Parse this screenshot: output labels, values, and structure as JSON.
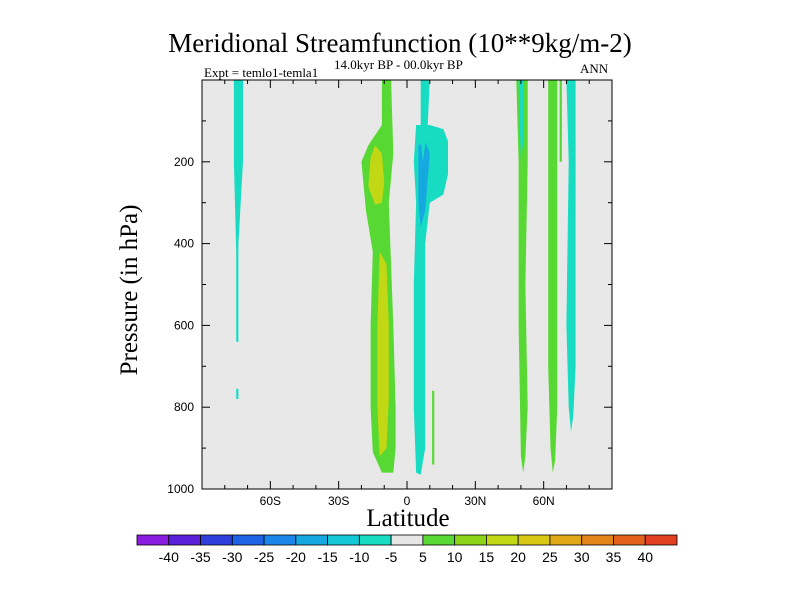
{
  "chart_data": {
    "type": "heatmap",
    "title": "Meridional Streamfunction (10**9kg/m-2)",
    "subtitle_left": "Expt = temlo1-temla1",
    "subtitle_center": "14.0kyr BP - 00.0kyr BP",
    "subtitle_right": "ANN",
    "xlabel": "Latitude",
    "ylabel": "Pressure (in hPa)",
    "xlim": [
      -90,
      90
    ],
    "ylim": [
      1000,
      0
    ],
    "x_ticks": [
      -60,
      -30,
      0,
      30,
      60
    ],
    "x_tick_labels": [
      "60S",
      "30S",
      "0",
      "30N",
      "60N"
    ],
    "y_ticks": [
      200,
      400,
      600,
      800,
      1000
    ],
    "y_tick_labels": [
      "200",
      "400",
      "600",
      "800",
      "1000"
    ],
    "background_color": "#e8e8e8",
    "colorbar": {
      "labels": [
        "-40",
        "-35",
        "-30",
        "-25",
        "-20",
        "-15",
        "-10",
        "-5",
        "5",
        "10",
        "15",
        "20",
        "25",
        "30",
        "35",
        "40"
      ],
      "colors": [
        "#8a1be0",
        "#5a22d8",
        "#2f3fdc",
        "#1e62e6",
        "#1a86e8",
        "#16a8e0",
        "#14c8d6",
        "#18dcc2",
        "#e6e6e6",
        "#58d832",
        "#8cd41a",
        "#c2d814",
        "#d8c814",
        "#e0a814",
        "#e2861a",
        "#e2621c",
        "#e04020"
      ]
    },
    "contour_regions": [
      {
        "name": "cyan-band-70s",
        "level": "-5",
        "color": "#18dcc2",
        "outline": [
          [
            -76,
            0
          ],
          [
            -72,
            0
          ],
          [
            -72,
            200
          ],
          [
            -74,
            400
          ],
          [
            -74,
            560
          ],
          [
            -74,
            640
          ],
          [
            -75,
            640
          ],
          [
            -75,
            420
          ],
          [
            -76,
            200
          ]
        ]
      },
      {
        "name": "cyan-spot-75s",
        "level": "-5",
        "color": "#18dcc2",
        "outline": [
          [
            -75,
            755
          ],
          [
            -74,
            755
          ],
          [
            -74,
            780
          ],
          [
            -75,
            780
          ]
        ]
      },
      {
        "name": "green-lobe-15s",
        "level": "5",
        "color": "#58d832",
        "outline": [
          [
            -11,
            0
          ],
          [
            -7,
            0
          ],
          [
            -6,
            180
          ],
          [
            -8,
            300
          ],
          [
            -6,
            600
          ],
          [
            -5,
            800
          ],
          [
            -5,
            900
          ],
          [
            -6,
            960
          ],
          [
            -11,
            960
          ],
          [
            -15,
            910
          ],
          [
            -16,
            800
          ],
          [
            -16,
            600
          ],
          [
            -15,
            420
          ],
          [
            -18,
            320
          ],
          [
            -20,
            200
          ],
          [
            -17,
            160
          ],
          [
            -11,
            110
          ]
        ]
      },
      {
        "name": "yellow-core-upper",
        "level": "15",
        "color": "#c2d814",
        "outline": [
          [
            -14,
            160
          ],
          [
            -11,
            180
          ],
          [
            -10,
            250
          ],
          [
            -11,
            300
          ],
          [
            -14,
            305
          ],
          [
            -17,
            260
          ],
          [
            -16,
            190
          ]
        ]
      },
      {
        "name": "yellow-core-lower",
        "level": "15",
        "color": "#c2d814",
        "outline": [
          [
            -12,
            420
          ],
          [
            -9,
            450
          ],
          [
            -8,
            600
          ],
          [
            -8,
            780
          ],
          [
            -9,
            900
          ],
          [
            -12,
            920
          ],
          [
            -13,
            800
          ],
          [
            -13,
            600
          ]
        ]
      },
      {
        "name": "cyan-lobe-5n",
        "level": "-5",
        "color": "#18dcc2",
        "outline": [
          [
            4,
            110
          ],
          [
            10,
            110
          ],
          [
            16,
            120
          ],
          [
            18,
            150
          ],
          [
            18,
            230
          ],
          [
            16,
            280
          ],
          [
            10,
            300
          ],
          [
            8,
            400
          ],
          [
            8,
            700
          ],
          [
            8,
            900
          ],
          [
            6,
            965
          ],
          [
            4,
            960
          ],
          [
            3,
            800
          ],
          [
            3,
            500
          ],
          [
            4,
            300
          ],
          [
            3,
            200
          ]
        ]
      },
      {
        "name": "blue-core-5n",
        "level": "-10",
        "color": "#16a8e0",
        "outline": [
          [
            5,
            160
          ],
          [
            8,
            150
          ],
          [
            10,
            180
          ],
          [
            9,
            250
          ],
          [
            8,
            320
          ],
          [
            6,
            360
          ],
          [
            5,
            300
          ]
        ]
      },
      {
        "name": "green-band-10n",
        "level": "5",
        "color": "#58d832",
        "outline": [
          [
            11,
            760
          ],
          [
            12,
            760
          ],
          [
            12,
            940
          ],
          [
            11,
            940
          ]
        ]
      },
      {
        "name": "cyan-band-10n",
        "level": "-5",
        "color": "#18dcc2",
        "outline": [
          [
            6,
            0
          ],
          [
            10,
            0
          ],
          [
            9,
            120
          ],
          [
            7,
            200
          ],
          [
            6,
            150
          ]
        ]
      },
      {
        "name": "green-stripe-50n",
        "level": "5",
        "color": "#58d832",
        "outline": [
          [
            48,
            0
          ],
          [
            53,
            0
          ],
          [
            53,
            200
          ],
          [
            52,
            500
          ],
          [
            53,
            800
          ],
          [
            52,
            920
          ],
          [
            51,
            960
          ],
          [
            50,
            920
          ],
          [
            49,
            600
          ],
          [
            49,
            200
          ]
        ]
      },
      {
        "name": "cyan-stripe-52n",
        "level": "-5",
        "color": "#18dcc2",
        "outline": [
          [
            49,
            0
          ],
          [
            51,
            0
          ],
          [
            51,
            150
          ],
          [
            50,
            200
          ]
        ]
      },
      {
        "name": "green-stripe-64n",
        "level": "5",
        "color": "#58d832",
        "outline": [
          [
            62,
            0
          ],
          [
            66,
            0
          ],
          [
            66,
            400
          ],
          [
            66,
            800
          ],
          [
            65,
            930
          ],
          [
            64,
            960
          ],
          [
            63,
            900
          ],
          [
            62,
            700
          ]
        ]
      },
      {
        "name": "cyan-stripe-72n",
        "level": "-5",
        "color": "#18dcc2",
        "outline": [
          [
            70,
            0
          ],
          [
            74,
            0
          ],
          [
            74,
            300
          ],
          [
            74,
            700
          ],
          [
            73,
            820
          ],
          [
            72,
            860
          ],
          [
            71,
            800
          ],
          [
            70,
            600
          ],
          [
            71,
            200
          ]
        ]
      },
      {
        "name": "green-stripe-68n",
        "level": "5",
        "color": "#58d832",
        "outline": [
          [
            67,
            0
          ],
          [
            68,
            0
          ],
          [
            68,
            200
          ],
          [
            67,
            200
          ]
        ]
      }
    ]
  }
}
